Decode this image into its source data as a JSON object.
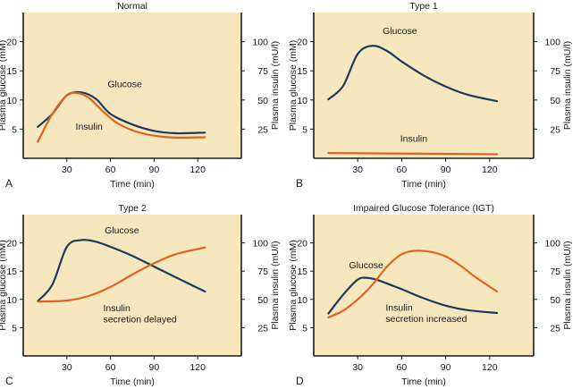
{
  "colors": {
    "panel_bg": "#f6e7bf",
    "glucose": "#1c3a5e",
    "insulin": "#e0641e",
    "frame": "#1a1a1a"
  },
  "chart_data": [
    {
      "type": "line",
      "panel_label": "A",
      "title": "Normal",
      "xlabel": "Time (min)",
      "ylabel": "Plasma glucose (mM)",
      "y2label": "Plasma insulin (mU/l)",
      "xticks": [
        30,
        60,
        90,
        120
      ],
      "yticks": [
        5,
        10,
        15,
        20
      ],
      "y2ticks": [
        25,
        50,
        75,
        100
      ],
      "xlim": [
        0,
        150
      ],
      "ylim": [
        0,
        25
      ],
      "y2lim": [
        0,
        125
      ],
      "series": [
        {
          "name": "Glucose",
          "axis": "left",
          "color": "#1c3a5e",
          "x": [
            10,
            20,
            30,
            40,
            50,
            60,
            75,
            90,
            105,
            125
          ],
          "y": [
            5.4,
            7.6,
            10.8,
            11.3,
            10.2,
            7.6,
            5.8,
            4.7,
            4.3,
            4.4
          ]
        },
        {
          "name": "Insulin",
          "axis": "right",
          "color": "#e0641e",
          "x": [
            10,
            20,
            30,
            37,
            45,
            55,
            65,
            80,
            100,
            125
          ],
          "y": [
            14,
            38,
            54,
            56,
            52,
            40,
            30,
            22,
            18,
            18
          ]
        }
      ],
      "annotations": [
        {
          "text": "Glucose",
          "x": 58,
          "y": 12.2
        },
        {
          "text": "Insulin",
          "x": 36,
          "y": 4.9
        }
      ]
    },
    {
      "type": "line",
      "panel_label": "B",
      "title": "Type 1",
      "xlabel": "Time (min)",
      "ylabel": "Plasma glucose (mM)",
      "y2label": "Plasma insulin (mU/l)",
      "xticks": [
        30,
        60,
        90,
        120
      ],
      "yticks": [
        5,
        10,
        15,
        20
      ],
      "y2ticks": [
        25,
        50,
        75,
        100
      ],
      "xlim": [
        0,
        150
      ],
      "ylim": [
        0,
        25
      ],
      "y2lim": [
        0,
        125
      ],
      "series": [
        {
          "name": "Glucose",
          "axis": "left",
          "color": "#1c3a5e",
          "x": [
            10,
            20,
            30,
            40,
            50,
            60,
            75,
            90,
            105,
            125
          ],
          "y": [
            10.1,
            12.4,
            17.9,
            19.3,
            18.4,
            16.6,
            14.2,
            12.3,
            10.9,
            9.8
          ]
        },
        {
          "name": "Insulin",
          "axis": "right",
          "color": "#e0641e",
          "x": [
            10,
            125
          ],
          "y": [
            4.5,
            3.5
          ]
        }
      ],
      "annotations": [
        {
          "text": "Glucose",
          "x": 47,
          "y": 21.3
        },
        {
          "text": "Insulin",
          "x": 59,
          "y": 2.8
        }
      ]
    },
    {
      "type": "line",
      "panel_label": "C",
      "title": "Type 2",
      "xlabel": "Time (min)",
      "ylabel": "Plasma glucose (mM)",
      "y2label": "Plasma insulin (mU/l)",
      "xticks": [
        30,
        60,
        90,
        120
      ],
      "yticks": [
        5,
        10,
        15,
        20
      ],
      "y2ticks": [
        25,
        50,
        75,
        100
      ],
      "xlim": [
        0,
        150
      ],
      "ylim": [
        0,
        25
      ],
      "y2lim": [
        0,
        125
      ],
      "series": [
        {
          "name": "Glucose",
          "axis": "left",
          "color": "#1c3a5e",
          "x": [
            10,
            20,
            30,
            40,
            50,
            60,
            75,
            90,
            105,
            125
          ],
          "y": [
            9.7,
            12.6,
            19.3,
            20.5,
            20.2,
            19.3,
            17.7,
            15.8,
            13.9,
            11.4
          ]
        },
        {
          "name": "Insulin",
          "axis": "right",
          "color": "#e0641e",
          "x": [
            10,
            30,
            45,
            60,
            75,
            90,
            105,
            125
          ],
          "y": [
            48,
            49,
            53,
            61,
            72,
            82,
            90,
            96
          ]
        }
      ],
      "annotations": [
        {
          "text": "Glucose",
          "x": 56,
          "y": 21.7
        },
        {
          "text": "Insulin",
          "x": 55,
          "y": 7.9
        },
        {
          "text": "secretion delayed",
          "x": 55,
          "y": 5.9
        }
      ]
    },
    {
      "type": "line",
      "panel_label": "D",
      "title": "Impaired Glucose Tolerance (IGT)",
      "xlabel": "Time (min)",
      "ylabel": "Plasma glucose (mM)",
      "y2label": "Plasma insulin (mU/l)",
      "xticks": [
        30,
        60,
        90,
        120
      ],
      "yticks": [
        5,
        10,
        15,
        20
      ],
      "y2ticks": [
        25,
        50,
        75,
        100
      ],
      "xlim": [
        0,
        150
      ],
      "ylim": [
        0,
        25
      ],
      "y2lim": [
        0,
        125
      ],
      "series": [
        {
          "name": "Glucose",
          "axis": "left",
          "color": "#1c3a5e",
          "x": [
            10,
            20,
            30,
            37,
            45,
            60,
            75,
            90,
            105,
            125
          ],
          "y": [
            7.5,
            10.8,
            13.5,
            13.8,
            13.3,
            11.8,
            10.2,
            8.9,
            8.1,
            7.6
          ]
        },
        {
          "name": "Insulin",
          "axis": "right",
          "color": "#e0641e",
          "x": [
            10,
            20,
            30,
            40,
            50,
            60,
            70,
            80,
            90,
            100,
            110,
            125
          ],
          "y": [
            34,
            40,
            50,
            63,
            79,
            90,
            93,
            92,
            88,
            80,
            70,
            57
          ]
        }
      ],
      "annotations": [
        {
          "text": "Glucose",
          "x": 24,
          "y": 15.5
        },
        {
          "text": "Insulin",
          "x": 49,
          "y": 8.0
        },
        {
          "text": "secretion increased",
          "x": 49,
          "y": 6.0
        }
      ]
    }
  ]
}
